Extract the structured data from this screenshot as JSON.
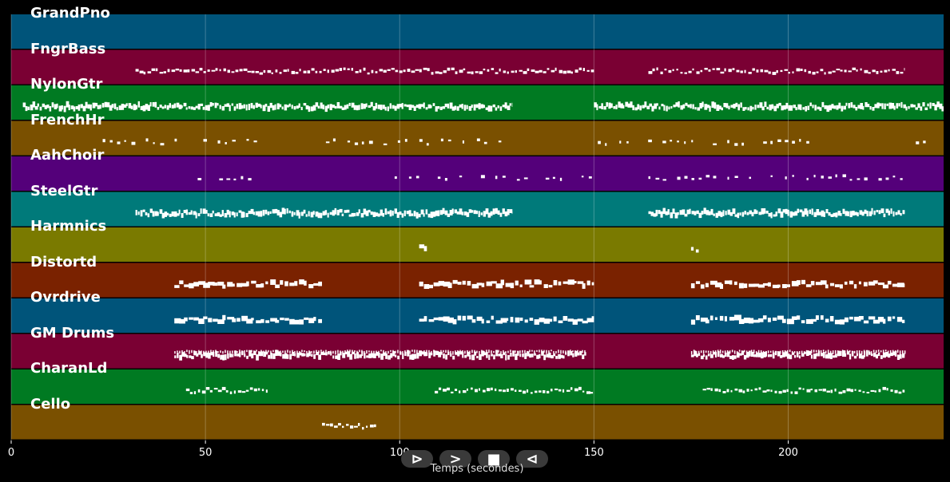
{
  "chart_data": {
    "type": "piano-roll",
    "xlabel": "Temps (secondes)",
    "xlim": [
      0,
      240
    ],
    "xticks": [
      0,
      50,
      100,
      150,
      200
    ],
    "grid": true,
    "tracks": [
      {
        "name": "GrandPno",
        "color": "#00547a",
        "segments": [],
        "style": "none",
        "stacked": false
      },
      {
        "name": "FngrBass",
        "color": "#7a0033",
        "segments": [
          [
            32,
            150
          ],
          [
            164,
            230
          ]
        ],
        "style": "melody",
        "stacked": false
      },
      {
        "name": "NylonGtr",
        "color": "#007a22",
        "segments": [
          [
            3,
            129
          ],
          [
            150,
            240
          ]
        ],
        "style": "dense",
        "stacked": false
      },
      {
        "name": "FrenchHr",
        "color": "#7a5000",
        "segments": [
          [
            18,
            66
          ],
          [
            81,
            129
          ],
          [
            151,
            212
          ],
          [
            231,
            238
          ]
        ],
        "style": "sparse",
        "stacked": false
      },
      {
        "name": "AahChoir",
        "color": "#54007a",
        "segments": [
          [
            48,
            62
          ],
          [
            95,
            150
          ],
          [
            164,
            230
          ]
        ],
        "style": "sparse",
        "stacked": false
      },
      {
        "name": "SteelGtr",
        "color": "#007a7a",
        "segments": [
          [
            32,
            129
          ],
          [
            164,
            230
          ]
        ],
        "style": "dense",
        "stacked": false
      },
      {
        "name": "Harmnics",
        "color": "#7a7a00",
        "segments": [
          [
            105,
            107
          ],
          [
            175,
            177
          ]
        ],
        "style": "blocks",
        "stacked": false
      },
      {
        "name": "Distortd",
        "color": "#7a2200",
        "segments": [
          [
            42,
            80
          ],
          [
            105,
            150
          ],
          [
            175,
            230
          ]
        ],
        "style": "blocks",
        "stacked": false
      },
      {
        "name": "Ovrdrive",
        "color": "#00547a",
        "segments": [
          [
            42,
            80
          ],
          [
            105,
            150
          ],
          [
            175,
            230
          ]
        ],
        "style": "blocks",
        "stacked": false
      },
      {
        "name": "GM Drums",
        "color": "#7a0033",
        "segments": [
          [
            42,
            148
          ],
          [
            175,
            230
          ]
        ],
        "style": "dense",
        "stacked": true
      },
      {
        "name": "CharanLd",
        "color": "#007a22",
        "segments": [
          [
            45,
            66
          ],
          [
            109,
            150
          ],
          [
            178,
            230
          ]
        ],
        "style": "melody",
        "stacked": false
      },
      {
        "name": "Cello",
        "color": "#7a5000",
        "segments": [
          [
            80,
            94
          ]
        ],
        "style": "melody",
        "stacked": false
      }
    ]
  },
  "controls": [
    {
      "name": "play-icon",
      "glyph": "⊳"
    },
    {
      "name": "forward-icon",
      "glyph": ">"
    },
    {
      "name": "stop-icon",
      "glyph": "■"
    },
    {
      "name": "back-icon",
      "glyph": "⊲"
    }
  ]
}
